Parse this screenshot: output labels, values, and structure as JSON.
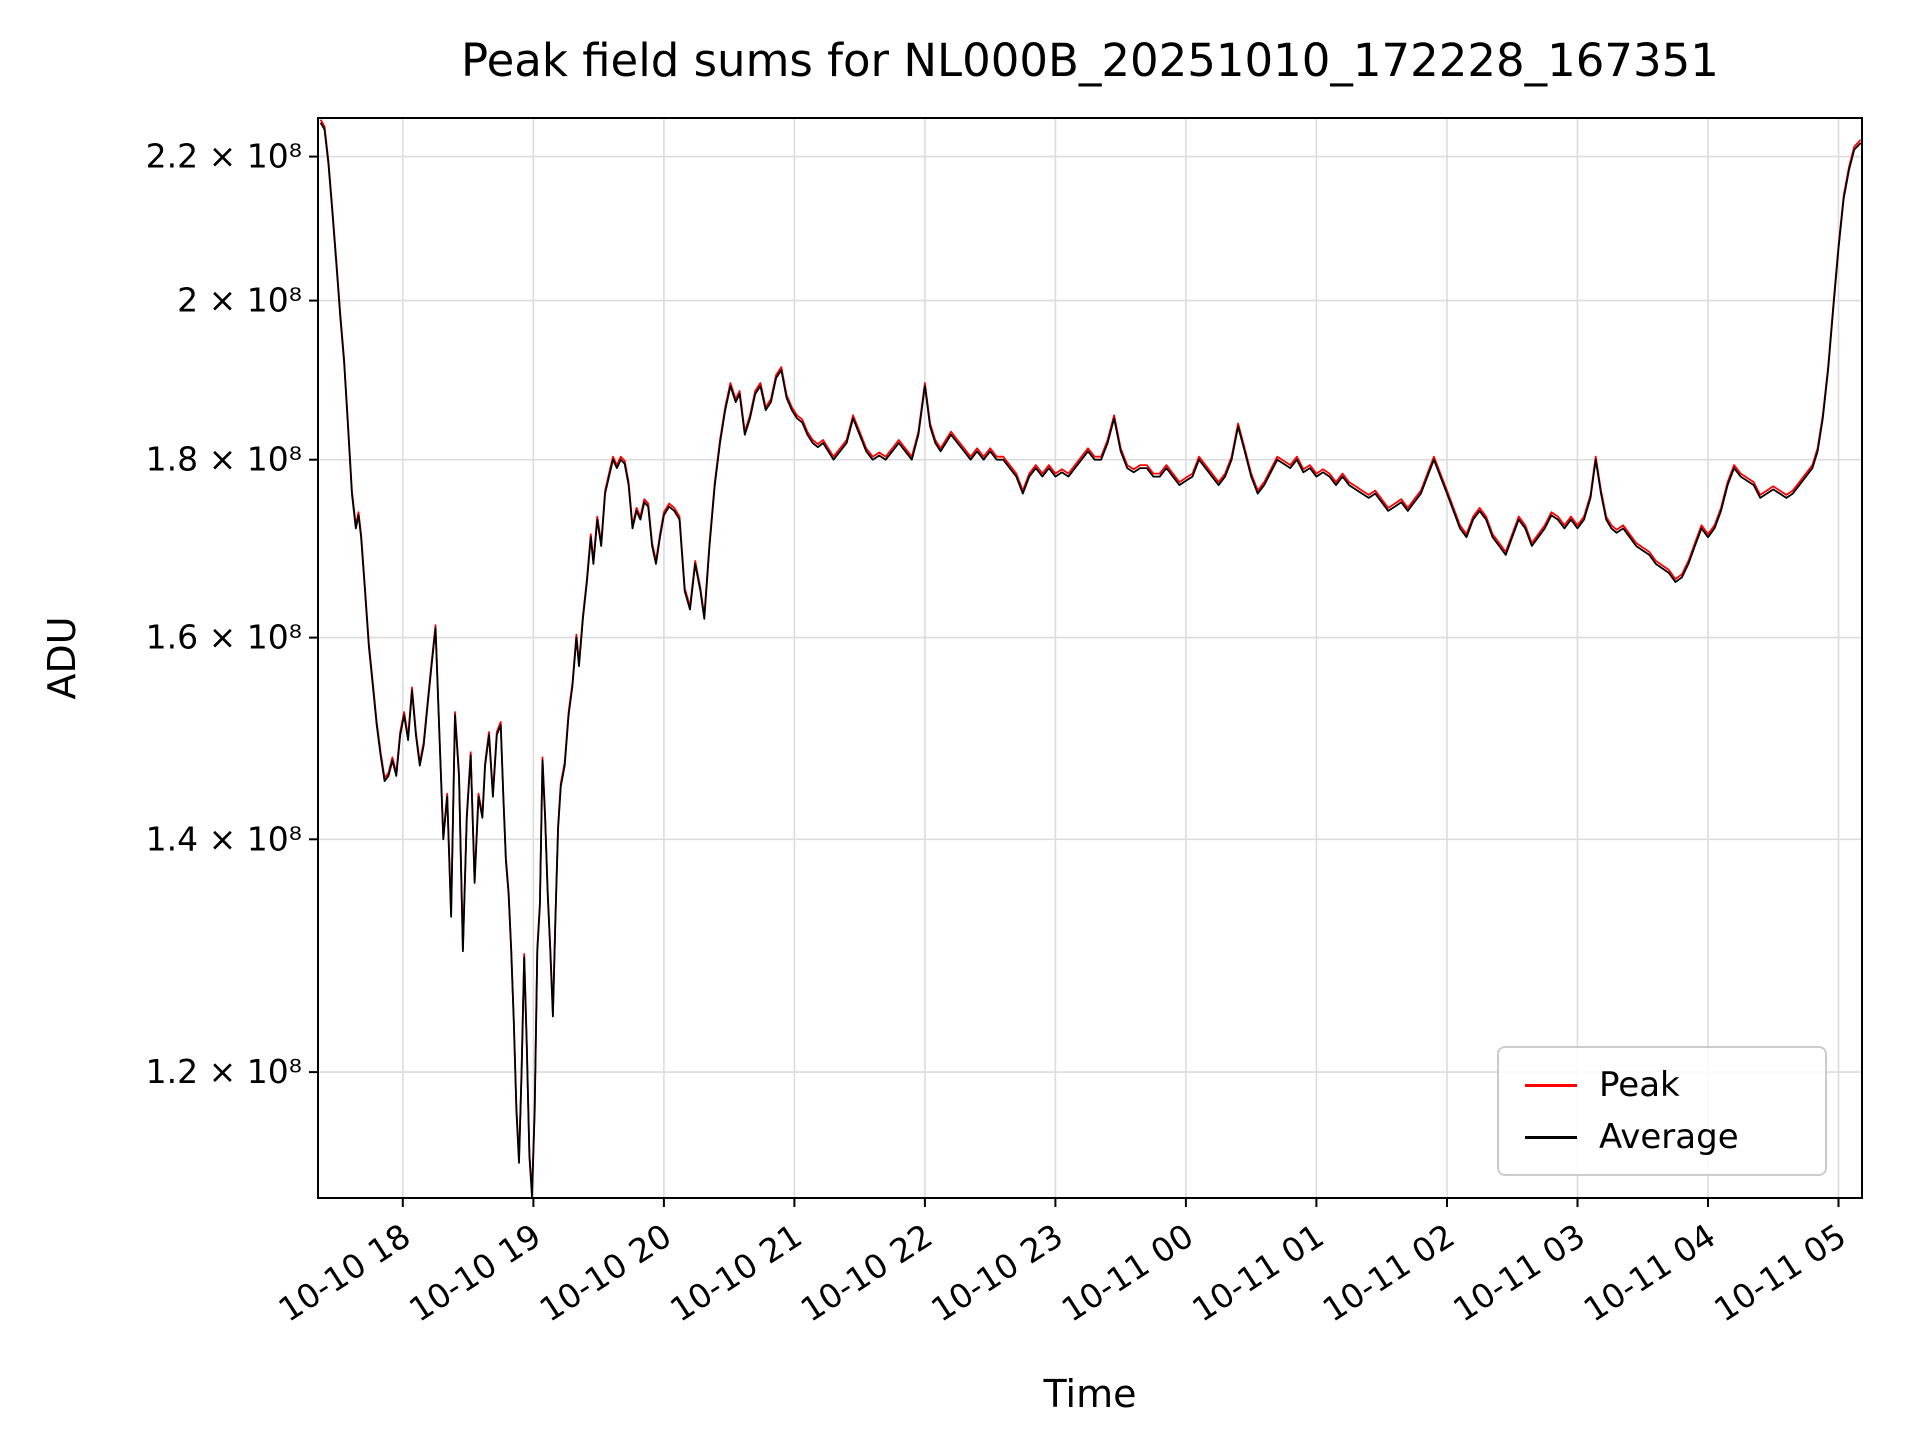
{
  "chart_data": {
    "type": "line",
    "title": "Peak field sums for NL000B_20251010_172228_167351",
    "xlabel": "Time",
    "ylabel": "ADU",
    "y_scale": "log",
    "grid": true,
    "legend_location": "lower right",
    "xlim_hours": [
      17.35,
      29.18
    ],
    "ylim_e8": [
      1.104,
      2.257
    ],
    "x_unit": "hours since 2025-10-10 00:00",
    "value_unit": "1e8 ADU",
    "x_ticks": [
      [
        18,
        "10-10 18"
      ],
      [
        19,
        "10-10 19"
      ],
      [
        20,
        "10-10 20"
      ],
      [
        21,
        "10-10 21"
      ],
      [
        22,
        "10-10 22"
      ],
      [
        23,
        "10-10 23"
      ],
      [
        24,
        "10-11 00"
      ],
      [
        25,
        "10-11 01"
      ],
      [
        26,
        "10-11 02"
      ],
      [
        27,
        "10-11 03"
      ],
      [
        28,
        "10-11 04"
      ],
      [
        29,
        "10-11 05"
      ]
    ],
    "y_ticks": [
      [
        1.2,
        "1.2 × 10⁸"
      ],
      [
        1.4,
        "1.4 × 10⁸"
      ],
      [
        1.6,
        "1.6 × 10⁸"
      ],
      [
        1.8,
        "1.8 × 10⁸"
      ],
      [
        2.0,
        "2 × 10⁸"
      ],
      [
        2.2,
        "2.2 × 10⁸"
      ]
    ],
    "series": [
      {
        "name": "Peak",
        "color": "#ff0000",
        "values_scale": 1.002
      },
      {
        "name": "Average",
        "color": "#000000",
        "values_scale": 1.0
      }
    ],
    "points_e8": [
      [
        17.37,
        2.25
      ],
      [
        17.4,
        2.24
      ],
      [
        17.43,
        2.19
      ],
      [
        17.46,
        2.12
      ],
      [
        17.49,
        2.05
      ],
      [
        17.52,
        1.98
      ],
      [
        17.55,
        1.92
      ],
      [
        17.58,
        1.84
      ],
      [
        17.61,
        1.76
      ],
      [
        17.64,
        1.72
      ],
      [
        17.66,
        1.735
      ],
      [
        17.68,
        1.71
      ],
      [
        17.71,
        1.65
      ],
      [
        17.74,
        1.59
      ],
      [
        17.77,
        1.55
      ],
      [
        17.8,
        1.51
      ],
      [
        17.83,
        1.48
      ],
      [
        17.86,
        1.455
      ],
      [
        17.89,
        1.46
      ],
      [
        17.92,
        1.475
      ],
      [
        17.95,
        1.46
      ],
      [
        17.98,
        1.5
      ],
      [
        18.01,
        1.52
      ],
      [
        18.04,
        1.495
      ],
      [
        18.07,
        1.545
      ],
      [
        18.1,
        1.5
      ],
      [
        18.13,
        1.47
      ],
      [
        18.16,
        1.49
      ],
      [
        18.19,
        1.53
      ],
      [
        18.22,
        1.57
      ],
      [
        18.25,
        1.61
      ],
      [
        18.28,
        1.5
      ],
      [
        18.31,
        1.4
      ],
      [
        18.34,
        1.44
      ],
      [
        18.37,
        1.33
      ],
      [
        18.4,
        1.52
      ],
      [
        18.43,
        1.46
      ],
      [
        18.46,
        1.3
      ],
      [
        18.49,
        1.42
      ],
      [
        18.52,
        1.48
      ],
      [
        18.55,
        1.36
      ],
      [
        18.58,
        1.44
      ],
      [
        18.61,
        1.42
      ],
      [
        18.63,
        1.47
      ],
      [
        18.66,
        1.5
      ],
      [
        18.69,
        1.44
      ],
      [
        18.72,
        1.5
      ],
      [
        18.75,
        1.51
      ],
      [
        18.77,
        1.44
      ],
      [
        18.79,
        1.38
      ],
      [
        18.81,
        1.35
      ],
      [
        18.83,
        1.3
      ],
      [
        18.85,
        1.24
      ],
      [
        18.87,
        1.17
      ],
      [
        18.89,
        1.13
      ],
      [
        18.91,
        1.2
      ],
      [
        18.93,
        1.295
      ],
      [
        18.95,
        1.22
      ],
      [
        18.97,
        1.135
      ],
      [
        18.99,
        1.105
      ],
      [
        19.01,
        1.17
      ],
      [
        19.03,
        1.3
      ],
      [
        19.05,
        1.34
      ],
      [
        19.07,
        1.475
      ],
      [
        19.09,
        1.42
      ],
      [
        19.11,
        1.35
      ],
      [
        19.13,
        1.3
      ],
      [
        19.15,
        1.245
      ],
      [
        19.17,
        1.33
      ],
      [
        19.19,
        1.41
      ],
      [
        19.21,
        1.45
      ],
      [
        19.24,
        1.47
      ],
      [
        19.27,
        1.52
      ],
      [
        19.3,
        1.55
      ],
      [
        19.33,
        1.6
      ],
      [
        19.35,
        1.57
      ],
      [
        19.38,
        1.62
      ],
      [
        19.41,
        1.66
      ],
      [
        19.44,
        1.71
      ],
      [
        19.46,
        1.68
      ],
      [
        19.49,
        1.73
      ],
      [
        19.52,
        1.7
      ],
      [
        19.55,
        1.76
      ],
      [
        19.58,
        1.78
      ],
      [
        19.61,
        1.8
      ],
      [
        19.64,
        1.79
      ],
      [
        19.67,
        1.8
      ],
      [
        19.7,
        1.795
      ],
      [
        19.73,
        1.77
      ],
      [
        19.76,
        1.72
      ],
      [
        19.79,
        1.74
      ],
      [
        19.82,
        1.73
      ],
      [
        19.85,
        1.75
      ],
      [
        19.88,
        1.745
      ],
      [
        19.91,
        1.7
      ],
      [
        19.94,
        1.68
      ],
      [
        19.97,
        1.71
      ],
      [
        20.0,
        1.735
      ],
      [
        20.04,
        1.745
      ],
      [
        20.08,
        1.74
      ],
      [
        20.12,
        1.73
      ],
      [
        20.16,
        1.65
      ],
      [
        20.2,
        1.63
      ],
      [
        20.24,
        1.68
      ],
      [
        20.28,
        1.65
      ],
      [
        20.31,
        1.62
      ],
      [
        20.35,
        1.7
      ],
      [
        20.39,
        1.77
      ],
      [
        20.43,
        1.82
      ],
      [
        20.47,
        1.86
      ],
      [
        20.51,
        1.89
      ],
      [
        20.55,
        1.87
      ],
      [
        20.58,
        1.88
      ],
      [
        20.62,
        1.83
      ],
      [
        20.66,
        1.85
      ],
      [
        20.7,
        1.88
      ],
      [
        20.74,
        1.89
      ],
      [
        20.78,
        1.86
      ],
      [
        20.82,
        1.87
      ],
      [
        20.86,
        1.9
      ],
      [
        20.9,
        1.91
      ],
      [
        20.94,
        1.875
      ],
      [
        20.98,
        1.86
      ],
      [
        21.02,
        1.85
      ],
      [
        21.06,
        1.845
      ],
      [
        21.1,
        1.83
      ],
      [
        21.14,
        1.82
      ],
      [
        21.18,
        1.815
      ],
      [
        21.22,
        1.82
      ],
      [
        21.26,
        1.81
      ],
      [
        21.3,
        1.8
      ],
      [
        21.35,
        1.81
      ],
      [
        21.4,
        1.82
      ],
      [
        21.45,
        1.85
      ],
      [
        21.5,
        1.83
      ],
      [
        21.55,
        1.81
      ],
      [
        21.6,
        1.8
      ],
      [
        21.65,
        1.805
      ],
      [
        21.7,
        1.8
      ],
      [
        21.75,
        1.81
      ],
      [
        21.8,
        1.82
      ],
      [
        21.85,
        1.81
      ],
      [
        21.9,
        1.8
      ],
      [
        21.95,
        1.83
      ],
      [
        22.0,
        1.89
      ],
      [
        22.04,
        1.84
      ],
      [
        22.08,
        1.82
      ],
      [
        22.12,
        1.81
      ],
      [
        22.16,
        1.82
      ],
      [
        22.2,
        1.83
      ],
      [
        22.25,
        1.82
      ],
      [
        22.3,
        1.81
      ],
      [
        22.35,
        1.8
      ],
      [
        22.4,
        1.81
      ],
      [
        22.45,
        1.8
      ],
      [
        22.5,
        1.81
      ],
      [
        22.55,
        1.8
      ],
      [
        22.6,
        1.8
      ],
      [
        22.65,
        1.79
      ],
      [
        22.7,
        1.78
      ],
      [
        22.75,
        1.76
      ],
      [
        22.8,
        1.78
      ],
      [
        22.85,
        1.79
      ],
      [
        22.9,
        1.78
      ],
      [
        22.95,
        1.79
      ],
      [
        23.0,
        1.78
      ],
      [
        23.05,
        1.785
      ],
      [
        23.1,
        1.78
      ],
      [
        23.15,
        1.79
      ],
      [
        23.2,
        1.8
      ],
      [
        23.25,
        1.81
      ],
      [
        23.3,
        1.8
      ],
      [
        23.35,
        1.8
      ],
      [
        23.4,
        1.82
      ],
      [
        23.45,
        1.85
      ],
      [
        23.5,
        1.81
      ],
      [
        23.55,
        1.79
      ],
      [
        23.6,
        1.785
      ],
      [
        23.65,
        1.79
      ],
      [
        23.7,
        1.79
      ],
      [
        23.75,
        1.78
      ],
      [
        23.8,
        1.78
      ],
      [
        23.85,
        1.79
      ],
      [
        23.9,
        1.78
      ],
      [
        23.95,
        1.77
      ],
      [
        24.0,
        1.775
      ],
      [
        24.05,
        1.78
      ],
      [
        24.1,
        1.8
      ],
      [
        24.15,
        1.79
      ],
      [
        24.2,
        1.78
      ],
      [
        24.25,
        1.77
      ],
      [
        24.3,
        1.78
      ],
      [
        24.35,
        1.8
      ],
      [
        24.4,
        1.84
      ],
      [
        24.45,
        1.81
      ],
      [
        24.5,
        1.78
      ],
      [
        24.55,
        1.76
      ],
      [
        24.6,
        1.77
      ],
      [
        24.65,
        1.785
      ],
      [
        24.7,
        1.8
      ],
      [
        24.75,
        1.795
      ],
      [
        24.8,
        1.79
      ],
      [
        24.85,
        1.8
      ],
      [
        24.9,
        1.785
      ],
      [
        24.95,
        1.79
      ],
      [
        25.0,
        1.78
      ],
      [
        25.05,
        1.785
      ],
      [
        25.1,
        1.78
      ],
      [
        25.15,
        1.77
      ],
      [
        25.2,
        1.78
      ],
      [
        25.25,
        1.77
      ],
      [
        25.3,
        1.765
      ],
      [
        25.35,
        1.76
      ],
      [
        25.4,
        1.755
      ],
      [
        25.45,
        1.76
      ],
      [
        25.5,
        1.75
      ],
      [
        25.55,
        1.74
      ],
      [
        25.6,
        1.745
      ],
      [
        25.65,
        1.75
      ],
      [
        25.7,
        1.74
      ],
      [
        25.75,
        1.75
      ],
      [
        25.8,
        1.76
      ],
      [
        25.85,
        1.78
      ],
      [
        25.9,
        1.8
      ],
      [
        25.95,
        1.78
      ],
      [
        26.0,
        1.76
      ],
      [
        26.05,
        1.74
      ],
      [
        26.1,
        1.72
      ],
      [
        26.15,
        1.71
      ],
      [
        26.2,
        1.73
      ],
      [
        26.25,
        1.74
      ],
      [
        26.3,
        1.73
      ],
      [
        26.35,
        1.71
      ],
      [
        26.4,
        1.7
      ],
      [
        26.45,
        1.69
      ],
      [
        26.5,
        1.71
      ],
      [
        26.55,
        1.73
      ],
      [
        26.6,
        1.72
      ],
      [
        26.65,
        1.7
      ],
      [
        26.7,
        1.71
      ],
      [
        26.75,
        1.72
      ],
      [
        26.8,
        1.735
      ],
      [
        26.85,
        1.73
      ],
      [
        26.9,
        1.72
      ],
      [
        26.95,
        1.73
      ],
      [
        27.0,
        1.72
      ],
      [
        27.05,
        1.73
      ],
      [
        27.1,
        1.755
      ],
      [
        27.14,
        1.8
      ],
      [
        27.18,
        1.76
      ],
      [
        27.22,
        1.73
      ],
      [
        27.26,
        1.72
      ],
      [
        27.3,
        1.715
      ],
      [
        27.35,
        1.72
      ],
      [
        27.4,
        1.71
      ],
      [
        27.45,
        1.7
      ],
      [
        27.5,
        1.695
      ],
      [
        27.55,
        1.69
      ],
      [
        27.6,
        1.68
      ],
      [
        27.65,
        1.675
      ],
      [
        27.7,
        1.67
      ],
      [
        27.75,
        1.66
      ],
      [
        27.8,
        1.665
      ],
      [
        27.85,
        1.68
      ],
      [
        27.9,
        1.7
      ],
      [
        27.95,
        1.72
      ],
      [
        28.0,
        1.71
      ],
      [
        28.05,
        1.72
      ],
      [
        28.1,
        1.74
      ],
      [
        28.15,
        1.77
      ],
      [
        28.2,
        1.79
      ],
      [
        28.25,
        1.78
      ],
      [
        28.3,
        1.775
      ],
      [
        28.35,
        1.77
      ],
      [
        28.4,
        1.755
      ],
      [
        28.45,
        1.76
      ],
      [
        28.5,
        1.765
      ],
      [
        28.55,
        1.76
      ],
      [
        28.6,
        1.755
      ],
      [
        28.65,
        1.76
      ],
      [
        28.7,
        1.77
      ],
      [
        28.75,
        1.78
      ],
      [
        28.8,
        1.79
      ],
      [
        28.84,
        1.81
      ],
      [
        28.88,
        1.85
      ],
      [
        28.92,
        1.91
      ],
      [
        28.96,
        1.99
      ],
      [
        29.0,
        2.07
      ],
      [
        29.04,
        2.14
      ],
      [
        29.08,
        2.18
      ],
      [
        29.12,
        2.21
      ],
      [
        29.17,
        2.22
      ]
    ]
  }
}
